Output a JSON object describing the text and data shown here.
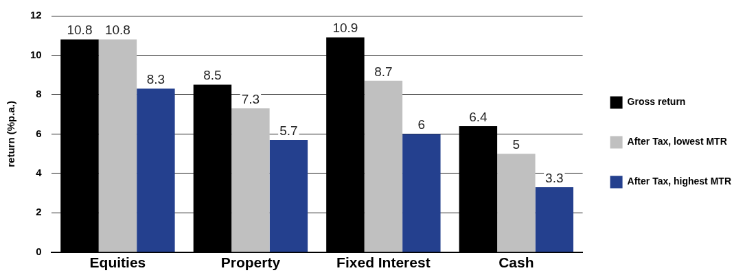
{
  "chart_data": {
    "type": "bar",
    "ylabel": "return (%p.a.)",
    "categories": [
      "Equities",
      "Property",
      "Fixed Interest",
      "Cash"
    ],
    "series": [
      {
        "name": "Gross return",
        "color": "#000000",
        "values": [
          10.8,
          8.5,
          10.9,
          6.4
        ]
      },
      {
        "name": "After Tax, lowest MTR",
        "color": "#c0c0c0",
        "values": [
          10.8,
          7.3,
          8.7,
          5
        ]
      },
      {
        "name": "After Tax, highest MTR",
        "color": "#24408e",
        "values": [
          8.3,
          5.7,
          6,
          3.3
        ]
      }
    ],
    "ylim": [
      0,
      12
    ],
    "yticks": [
      0,
      2,
      4,
      6,
      8,
      10,
      12
    ],
    "grid": "y",
    "legend": "right",
    "data_labels": true
  }
}
